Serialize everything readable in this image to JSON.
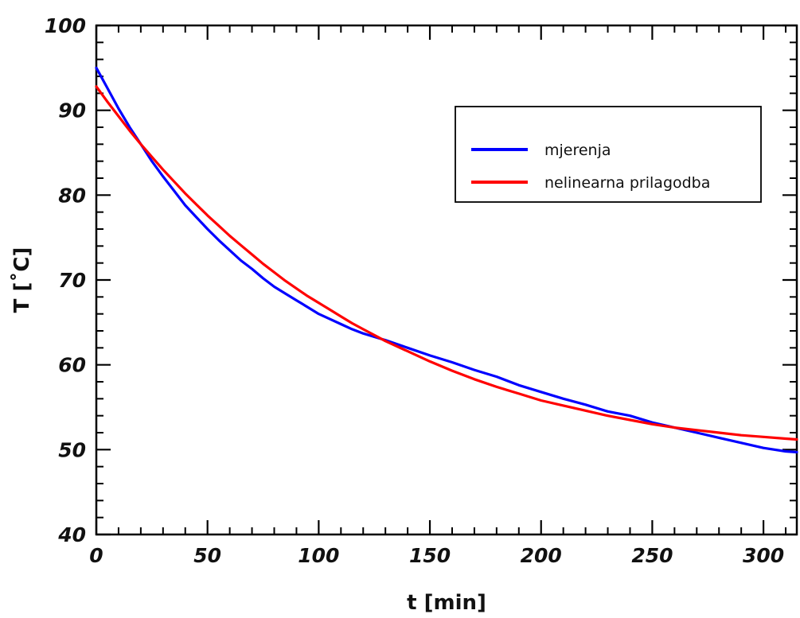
{
  "chart_data": {
    "type": "line",
    "xlabel": "t [min]",
    "ylabel": "T [˚C]",
    "xlim": [
      0,
      315
    ],
    "ylim": [
      40,
      100
    ],
    "x_ticks": [
      0,
      50,
      100,
      150,
      200,
      250,
      300
    ],
    "y_ticks": [
      40,
      50,
      60,
      70,
      80,
      90,
      100
    ],
    "x_minor_step": 10,
    "y_minor_step": 2,
    "grid": false,
    "legend_position": "top-right",
    "series": [
      {
        "name": "mjerenja",
        "color": "#0000ff",
        "x": [
          0,
          5,
          10,
          15,
          20,
          25,
          30,
          35,
          40,
          45,
          50,
          55,
          60,
          65,
          70,
          75,
          80,
          85,
          90,
          95,
          100,
          105,
          110,
          115,
          120,
          125,
          130,
          140,
          150,
          160,
          170,
          180,
          190,
          200,
          210,
          220,
          230,
          240,
          250,
          260,
          270,
          280,
          290,
          300,
          310,
          315
        ],
        "y": [
          95.0,
          92.6,
          90.2,
          88.0,
          86.0,
          84.0,
          82.2,
          80.5,
          78.8,
          77.4,
          76.0,
          74.7,
          73.5,
          72.3,
          71.3,
          70.2,
          69.2,
          68.4,
          67.6,
          66.8,
          66.0,
          65.4,
          64.8,
          64.2,
          63.7,
          63.3,
          62.9,
          62.0,
          61.1,
          60.3,
          59.4,
          58.6,
          57.6,
          56.8,
          56.0,
          55.3,
          54.5,
          54.0,
          53.2,
          52.6,
          52.0,
          51.4,
          50.8,
          50.2,
          49.8,
          49.7
        ]
      },
      {
        "name": "nelinearna prilagodba",
        "color": "#ff0000",
        "x": [
          0,
          5,
          10,
          15,
          20,
          25,
          30,
          35,
          40,
          45,
          50,
          55,
          60,
          65,
          70,
          75,
          80,
          85,
          90,
          95,
          100,
          105,
          110,
          115,
          120,
          125,
          130,
          140,
          150,
          160,
          170,
          180,
          190,
          200,
          210,
          220,
          230,
          240,
          250,
          260,
          270,
          280,
          290,
          300,
          310,
          315
        ],
        "y": [
          92.8,
          91.0,
          89.3,
          87.6,
          86.0,
          84.5,
          83.0,
          81.6,
          80.2,
          78.9,
          77.6,
          76.4,
          75.2,
          74.1,
          73.0,
          71.9,
          70.9,
          69.9,
          69.0,
          68.1,
          67.3,
          66.5,
          65.7,
          64.9,
          64.2,
          63.5,
          62.8,
          61.6,
          60.4,
          59.3,
          58.3,
          57.4,
          56.6,
          55.8,
          55.2,
          54.6,
          54.0,
          53.5,
          53.0,
          52.6,
          52.3,
          52.0,
          51.7,
          51.5,
          51.3,
          51.2
        ]
      }
    ]
  }
}
